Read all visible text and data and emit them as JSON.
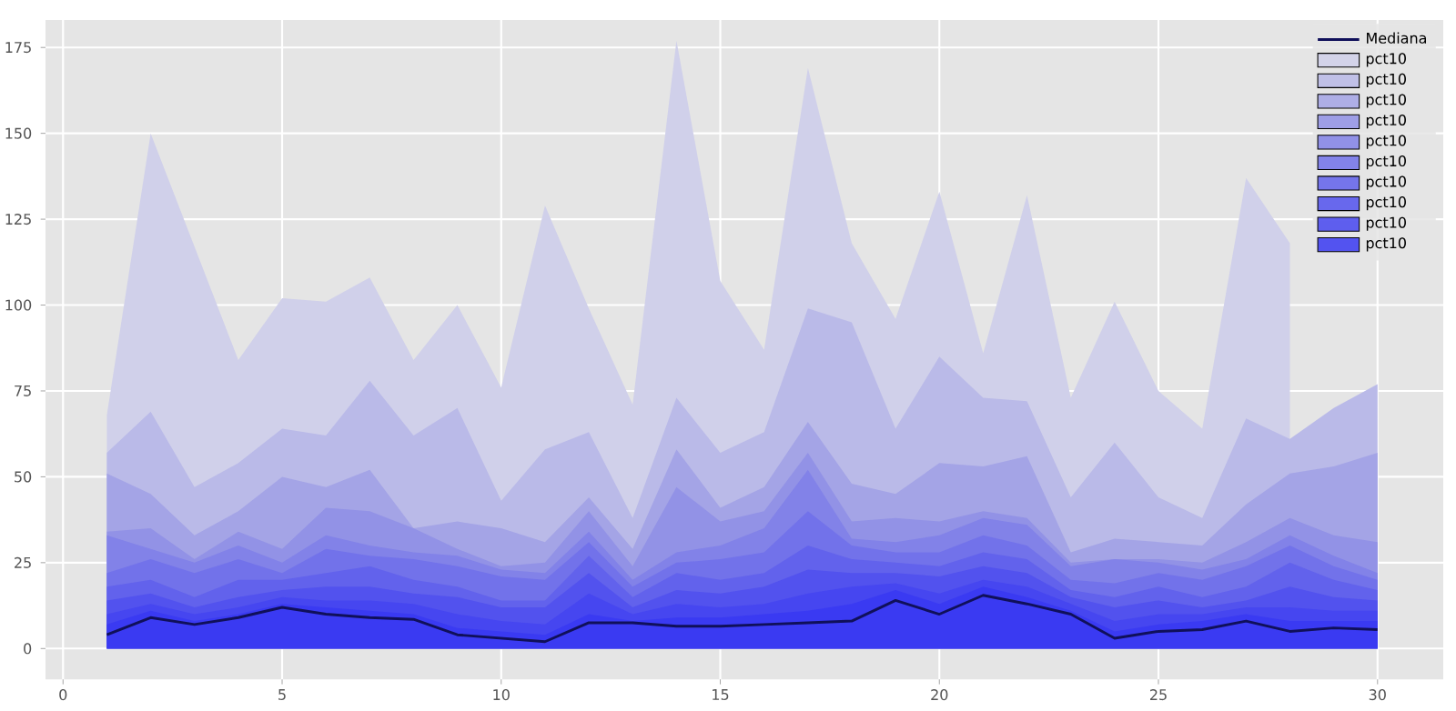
{
  "chart_data": {
    "type": "area",
    "x": [
      1,
      2,
      3,
      4,
      5,
      6,
      7,
      8,
      9,
      10,
      11,
      12,
      13,
      14,
      15,
      16,
      17,
      18,
      19,
      20,
      21,
      22,
      23,
      24,
      25,
      26,
      27,
      28,
      29,
      30
    ],
    "xlim": [
      -0.4,
      31.5
    ],
    "ylim": [
      -9,
      183
    ],
    "xticks": [
      0,
      5,
      10,
      15,
      20,
      25,
      30
    ],
    "yticks": [
      0,
      25,
      50,
      75,
      100,
      125,
      150,
      175
    ],
    "grid": true,
    "legend": "top right",
    "series": [
      {
        "name": "Mediana",
        "type": "line",
        "color": "#10105a",
        "values": [
          4,
          9,
          7,
          9,
          12,
          10,
          9,
          8.5,
          4,
          3,
          2,
          7.5,
          7.5,
          6.5,
          6.5,
          7,
          7.5,
          8,
          14,
          10,
          15.5,
          13,
          10,
          3,
          5,
          5.5,
          8,
          5,
          6,
          5.5
        ]
      },
      {
        "name": "pct10",
        "color": "#d0d0ea",
        "values": [
          68,
          150,
          117,
          84,
          102,
          101,
          108,
          84,
          100,
          76,
          129,
          99,
          71,
          177,
          107,
          87,
          169,
          118,
          96,
          133,
          86,
          132,
          73,
          101,
          75,
          64,
          137,
          118,
          null,
          null
        ]
      },
      {
        "name": "pct10",
        "color": "#babae8",
        "values": [
          57,
          69,
          47,
          54,
          64,
          62,
          78,
          62,
          70,
          43,
          58,
          63,
          38,
          73,
          57,
          63,
          99,
          95,
          64,
          85,
          73,
          72,
          44,
          60,
          44,
          38,
          67,
          61,
          70,
          77
        ]
      },
      {
        "name": "pct10",
        "color": "#a4a4e6",
        "values": [
          51,
          45,
          33,
          40,
          50,
          47,
          52,
          35,
          37,
          35,
          31,
          44,
          29,
          58,
          41,
          47,
          66,
          48,
          45,
          54,
          53,
          56,
          28,
          32,
          31,
          30,
          42,
          51,
          53,
          57
        ]
      },
      {
        "name": "pct10",
        "color": "#9292e6",
        "values": [
          34,
          35,
          26,
          34,
          29,
          41,
          40,
          35,
          29,
          24,
          25,
          40,
          24,
          47,
          37,
          40,
          57,
          37,
          38,
          37,
          40,
          38,
          25,
          26,
          26,
          25,
          31,
          38,
          33,
          31
        ]
      },
      {
        "name": "pct10",
        "color": "#8282e8",
        "values": [
          33,
          29,
          25,
          30,
          25,
          33,
          30,
          28,
          27,
          23,
          22,
          34,
          20,
          28,
          30,
          35,
          52,
          32,
          31,
          33,
          38,
          36,
          24,
          26,
          25,
          23,
          26,
          33,
          27,
          22
        ]
      },
      {
        "name": "pct10",
        "color": "#7272ea",
        "values": [
          22,
          26,
          22,
          26,
          22,
          29,
          27,
          26,
          24,
          21,
          20,
          31,
          18,
          25,
          26,
          28,
          40,
          30,
          28,
          28,
          33,
          30,
          20,
          19,
          22,
          20,
          24,
          30,
          24,
          20
        ]
      },
      {
        "name": "pct10",
        "color": "#6262ec",
        "values": [
          18,
          20,
          15,
          20,
          20,
          22,
          24,
          20,
          18,
          14,
          14,
          27,
          15,
          22,
          20,
          22,
          30,
          26,
          25,
          24,
          28,
          26,
          17,
          15,
          18,
          15,
          18,
          25,
          20,
          17
        ]
      },
      {
        "name": "pct10",
        "color": "#5252ee",
        "values": [
          14,
          16,
          12,
          15,
          17,
          18,
          18,
          16,
          15,
          12,
          12,
          22,
          12,
          17,
          16,
          18,
          23,
          22,
          22,
          21,
          24,
          22,
          15,
          12,
          14,
          12,
          14,
          18,
          15,
          14
        ]
      },
      {
        "name": "pct10",
        "color": "#4646f0",
        "values": [
          10,
          13,
          10,
          12,
          15,
          14,
          14,
          13,
          10,
          8,
          7,
          16,
          10,
          13,
          12,
          13,
          16,
          18,
          19,
          16,
          20,
          18,
          13,
          8,
          10,
          10,
          12,
          12,
          11,
          11
        ]
      },
      {
        "name": "pct10",
        "color": "#3a3af2",
        "values": [
          7,
          11,
          8,
          10,
          13,
          12,
          11,
          10,
          6,
          5,
          4,
          10,
          8,
          9,
          9,
          10,
          11,
          13,
          17,
          13,
          18,
          15,
          11,
          5,
          7,
          8,
          10,
          8,
          8,
          8
        ]
      }
    ]
  }
}
